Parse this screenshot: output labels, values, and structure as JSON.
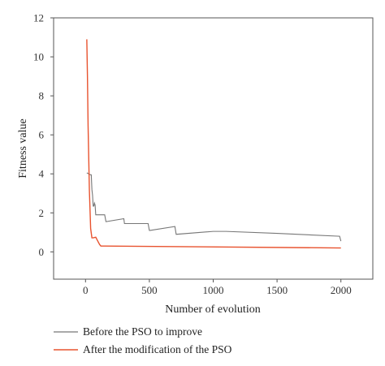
{
  "chart_data": {
    "type": "line",
    "title": "",
    "xlabel": "Number of evolution",
    "ylabel": "Fitness value",
    "xlim": [
      -250,
      2250
    ],
    "ylim": [
      -1.4,
      12
    ],
    "xticks": [
      0,
      500,
      1000,
      1500,
      2000
    ],
    "xtick_labels": [
      "0",
      "500",
      "1000",
      "1500",
      "2000"
    ],
    "yticks": [
      0,
      2,
      4,
      6,
      8,
      10,
      12
    ],
    "ytick_labels": [
      "0",
      "2",
      "4",
      "6",
      "8",
      "10",
      "12"
    ],
    "grid": false,
    "legend_position": "bottom-left, below plot",
    "series": [
      {
        "name": "Before the PSO to improve",
        "color": "#777777",
        "x": [
          10,
          40,
          45,
          50,
          55,
          60,
          65,
          70,
          75,
          80,
          85,
          90,
          100,
          110,
          120,
          150,
          160,
          300,
          305,
          310,
          490,
          500,
          505,
          700,
          710,
          1000,
          1100,
          1500,
          1990,
          2000
        ],
        "y": [
          4.05,
          3.95,
          3.95,
          3.2,
          2.9,
          2.35,
          2.35,
          2.5,
          2.4,
          1.9,
          1.9,
          1.9,
          1.9,
          1.9,
          1.9,
          1.9,
          1.55,
          1.7,
          1.45,
          1.45,
          1.45,
          1.1,
          1.1,
          1.3,
          0.9,
          1.05,
          1.05,
          0.95,
          0.8,
          0.55
        ]
      },
      {
        "name": "After the modification of the PSO",
        "color": "#e8532f",
        "x": [
          10,
          15,
          20,
          30,
          40,
          50,
          60,
          80,
          100,
          110,
          120,
          150,
          2000
        ],
        "y": [
          10.9,
          9.0,
          6.5,
          3.2,
          1.2,
          0.72,
          0.72,
          0.75,
          0.5,
          0.38,
          0.3,
          0.3,
          0.2
        ]
      }
    ]
  }
}
